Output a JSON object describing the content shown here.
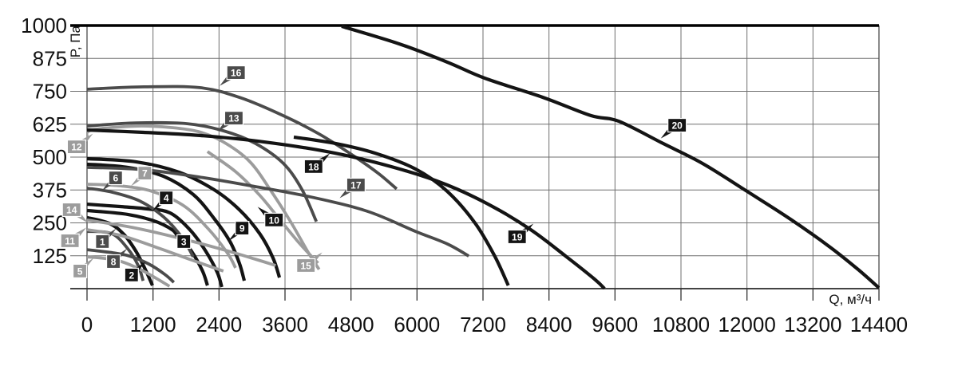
{
  "chart_data": {
    "type": "line",
    "title": "",
    "xlabel": "Q, м³/ч",
    "ylabel": "P, Па",
    "xlim": [
      0,
      14400
    ],
    "ylim": [
      0,
      1000
    ],
    "x_ticks": [
      0,
      1200,
      2400,
      3600,
      4800,
      6000,
      7200,
      8400,
      9600,
      10800,
      12000,
      13200,
      14400
    ],
    "y_ticks": [
      125,
      250,
      375,
      500,
      625,
      750,
      875,
      1000
    ],
    "grid": true,
    "legend": "numbered badges on curves",
    "colors": {
      "black": "#141414",
      "dark": "#4b4b4b",
      "light": "#9c9c9c"
    },
    "series": [
      {
        "label": "1",
        "color": "dark",
        "pointer": "ur",
        "badge_qp": [
          280,
          179
        ],
        "points": [
          [
            0,
            218
          ],
          [
            450,
            209
          ],
          [
            740,
            152
          ],
          [
            930,
            88
          ],
          [
            1020,
            30
          ]
        ]
      },
      {
        "label": "2",
        "color": "black",
        "pointer": "ur",
        "badge_qp": [
          810,
          52
        ],
        "points": [
          [
            0,
            270
          ],
          [
            410,
            248
          ],
          [
            670,
            206
          ],
          [
            890,
            142
          ],
          [
            1060,
            73
          ],
          [
            1190,
            12
          ]
        ]
      },
      {
        "label": "3",
        "color": "black",
        "pointer": "ul",
        "badge_qp": [
          1760,
          179
        ],
        "points": [
          [
            0,
            297
          ],
          [
            740,
            282
          ],
          [
            1290,
            252
          ],
          [
            1640,
            209
          ],
          [
            1900,
            142
          ],
          [
            2100,
            67
          ],
          [
            2190,
            12
          ]
        ]
      },
      {
        "label": "4",
        "color": "black",
        "pointer": "dl",
        "badge_qp": [
          1440,
          345
        ],
        "points": [
          [
            0,
            321
          ],
          [
            600,
            312
          ],
          [
            1100,
            303
          ],
          [
            1510,
            288
          ],
          [
            1870,
            224
          ],
          [
            2160,
            142
          ],
          [
            2370,
            61
          ],
          [
            2450,
            6
          ]
        ]
      },
      {
        "label": "5",
        "color": "light",
        "pointer": "ur",
        "badge_qp": [
          -130,
          67
        ],
        "points": [
          [
            0,
            121
          ],
          [
            520,
            109
          ],
          [
            910,
            79
          ],
          [
            1260,
            39
          ],
          [
            1500,
            9
          ]
        ]
      },
      {
        "label": "6",
        "color": "dark",
        "pointer": "dl",
        "badge_qp": [
          520,
          421
        ],
        "points": [
          [
            0,
            382
          ],
          [
            450,
            367
          ],
          [
            960,
            333
          ],
          [
            1390,
            273
          ],
          [
            1730,
            194
          ],
          [
            1930,
            121
          ]
        ]
      },
      {
        "label": "7",
        "color": "light",
        "pointer": "dl",
        "badge_qp": [
          1050,
          439
        ],
        "points": [
          [
            0,
            397
          ],
          [
            600,
            391
          ],
          [
            1180,
            370
          ],
          [
            1760,
            315
          ],
          [
            2220,
            224
          ],
          [
            2560,
            133
          ],
          [
            2700,
            79
          ]
        ]
      },
      {
        "label": "8",
        "color": "dark",
        "pointer": "ur",
        "badge_qp": [
          480,
          103
        ],
        "points": [
          [
            0,
            148
          ],
          [
            480,
            136
          ],
          [
            770,
            124
          ],
          [
            1120,
            94
          ],
          [
            1410,
            55
          ],
          [
            1580,
            24
          ]
        ]
      },
      {
        "label": "9",
        "color": "black",
        "pointer": "dl",
        "badge_qp": [
          2820,
          230
        ],
        "points": [
          [
            0,
            473
          ],
          [
            740,
            461
          ],
          [
            1390,
            427
          ],
          [
            1930,
            358
          ],
          [
            2310,
            267
          ],
          [
            2600,
            179
          ],
          [
            2770,
            97
          ],
          [
            2860,
            30
          ]
        ]
      },
      {
        "label": "10",
        "color": "black",
        "pointer": "ul",
        "badge_qp": [
          3400,
          261
        ],
        "points": [
          [
            0,
            494
          ],
          [
            890,
            482
          ],
          [
            1680,
            442
          ],
          [
            2310,
            376
          ],
          [
            2770,
            300
          ],
          [
            3140,
            209
          ],
          [
            3380,
            118
          ],
          [
            3500,
            42
          ]
        ]
      },
      {
        "label": "11",
        "color": "light",
        "pointer": "ur",
        "badge_qp": [
          -310,
          182
        ],
        "points": [
          [
            0,
            224
          ],
          [
            600,
            203
          ],
          [
            1250,
            158
          ],
          [
            1900,
            109
          ],
          [
            2480,
            67
          ]
        ]
      },
      {
        "label": "12",
        "color": "light",
        "pointer": "ur",
        "badge_qp": [
          -190,
          539
        ],
        "points": [
          [
            0,
            576
          ],
          [
            90,
            603
          ],
          [
            910,
            618
          ],
          [
            1540,
            612
          ],
          [
            2020,
            597
          ],
          [
            2450,
            561
          ],
          [
            2950,
            485
          ],
          [
            3350,
            370
          ],
          [
            3720,
            248
          ],
          [
            4010,
            142
          ],
          [
            4220,
            73
          ]
        ]
      },
      {
        "label": "13",
        "color": "dark",
        "pointer": "dl",
        "badge_qp": [
          2670,
          648
        ],
        "points": [
          [
            0,
            618
          ],
          [
            890,
            630
          ],
          [
            1820,
            627
          ],
          [
            2480,
            600
          ],
          [
            3060,
            552
          ],
          [
            3570,
            476
          ],
          [
            3910,
            376
          ],
          [
            4170,
            255
          ]
        ]
      },
      {
        "label": "14",
        "color": "light",
        "pointer": "dr",
        "badge_qp": [
          -280,
          300
        ],
        "points": [
          [
            0,
            261
          ],
          [
            890,
            230
          ],
          [
            1760,
            188
          ],
          [
            2480,
            148
          ],
          [
            3060,
            112
          ],
          [
            3430,
            88
          ]
        ]
      },
      {
        "label": "15",
        "color": "light",
        "pointer": "ur",
        "badge_qp": [
          3980,
          88
        ],
        "points": [
          [
            2190,
            521
          ],
          [
            2700,
            445
          ],
          [
            3140,
            355
          ],
          [
            3500,
            264
          ],
          [
            3860,
            173
          ],
          [
            4200,
            97
          ]
        ]
      },
      {
        "label": "16",
        "color": "dark",
        "pointer": "dl",
        "badge_qp": [
          2710,
          821
        ],
        "points": [
          [
            0,
            758
          ],
          [
            1030,
            767
          ],
          [
            2050,
            764
          ],
          [
            2770,
            727
          ],
          [
            3500,
            664
          ],
          [
            4220,
            588
          ],
          [
            4880,
            500
          ],
          [
            5310,
            436
          ],
          [
            5630,
            379
          ]
        ]
      },
      {
        "label": "17",
        "color": "dark",
        "pointer": "dl",
        "badge_qp": [
          4890,
          394
        ],
        "points": [
          [
            0,
            461
          ],
          [
            1030,
            452
          ],
          [
            2050,
            424
          ],
          [
            3060,
            388
          ],
          [
            4080,
            348
          ],
          [
            5100,
            294
          ],
          [
            5970,
            218
          ],
          [
            6550,
            170
          ],
          [
            6940,
            124
          ]
        ]
      },
      {
        "label": "18",
        "color": "black",
        "pointer": "ur",
        "badge_qp": [
          4120,
          464
        ],
        "points": [
          [
            3760,
            576
          ],
          [
            4510,
            552
          ],
          [
            5240,
            515
          ],
          [
            5970,
            455
          ],
          [
            6550,
            370
          ],
          [
            7060,
            248
          ],
          [
            7420,
            121
          ],
          [
            7660,
            12
          ]
        ]
      },
      {
        "label": "19",
        "color": "black",
        "pointer": "ur",
        "badge_qp": [
          7820,
          197
        ],
        "points": [
          [
            0,
            603
          ],
          [
            1030,
            594
          ],
          [
            2050,
            582
          ],
          [
            3210,
            558
          ],
          [
            4510,
            515
          ],
          [
            5680,
            455
          ],
          [
            6550,
            394
          ],
          [
            7350,
            315
          ],
          [
            8070,
            224
          ],
          [
            8720,
            121
          ],
          [
            9230,
            36
          ],
          [
            9410,
            0
          ]
        ]
      },
      {
        "label": "20",
        "color": "black",
        "pointer": "dl",
        "badge_qp": [
          10730,
          621
        ],
        "points": [
          [
            4630,
            997
          ],
          [
            5680,
            930
          ],
          [
            6550,
            861
          ],
          [
            7230,
            800
          ],
          [
            8290,
            727
          ],
          [
            9160,
            658
          ],
          [
            9670,
            636
          ],
          [
            10470,
            552
          ],
          [
            11190,
            476
          ],
          [
            12000,
            370
          ],
          [
            12790,
            264
          ],
          [
            13510,
            158
          ],
          [
            14020,
            73
          ],
          [
            14400,
            3
          ]
        ]
      }
    ]
  }
}
